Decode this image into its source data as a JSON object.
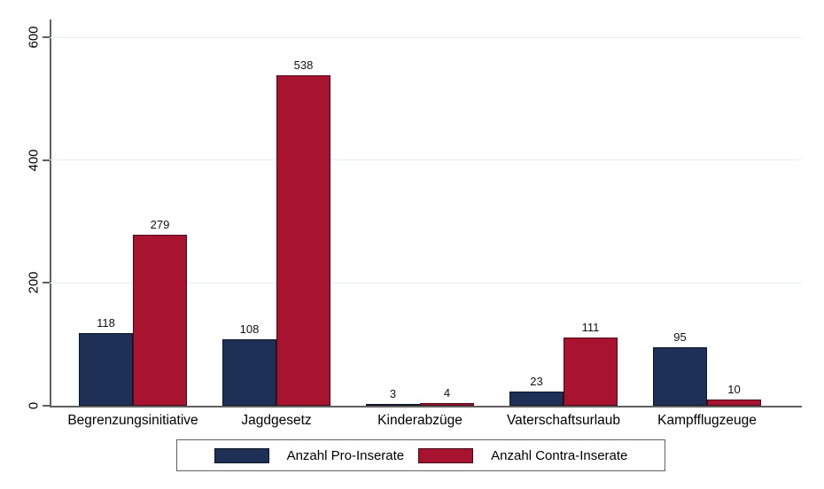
{
  "figure": {
    "background": "#ffffff",
    "title": ""
  },
  "chart_data": {
    "type": "bar",
    "categories": [
      "Begrenzungsinitiative",
      "Jagdgesetz",
      "Kinderabzüge",
      "Vaterschaftsurlaub",
      "Kampfflugzeuge"
    ],
    "series": [
      {
        "name": "Anzahl Pro-Inserate",
        "color": "#1f3057",
        "values": [
          118,
          108,
          3,
          23,
          95
        ]
      },
      {
        "name": "Anzahl Contra-Inserate",
        "color": "#a81330",
        "values": [
          279,
          538,
          4,
          111,
          10
        ]
      }
    ],
    "bar_labels": [
      [
        "118",
        "108",
        "3",
        "23",
        "95"
      ],
      [
        "279",
        "538",
        "4",
        "111",
        "10"
      ]
    ],
    "title": "",
    "xlabel": "",
    "ylabel": "",
    "ylim": [
      0,
      600
    ],
    "yticks": [
      0,
      200,
      400,
      600
    ],
    "ytick_labels": [
      "0",
      "200",
      "400",
      "600"
    ],
    "grid": true,
    "legend_position": "bottom-outside"
  },
  "legend": {
    "items": [
      {
        "label": "Anzahl Pro-Inserate",
        "color": "#1f3057"
      },
      {
        "label": "Anzahl Contra-Inserate",
        "color": "#a81330"
      }
    ]
  },
  "colors": {
    "grid": "#e7efec",
    "axis": "#606060",
    "text": "#000000",
    "legend_border": "#626262"
  }
}
